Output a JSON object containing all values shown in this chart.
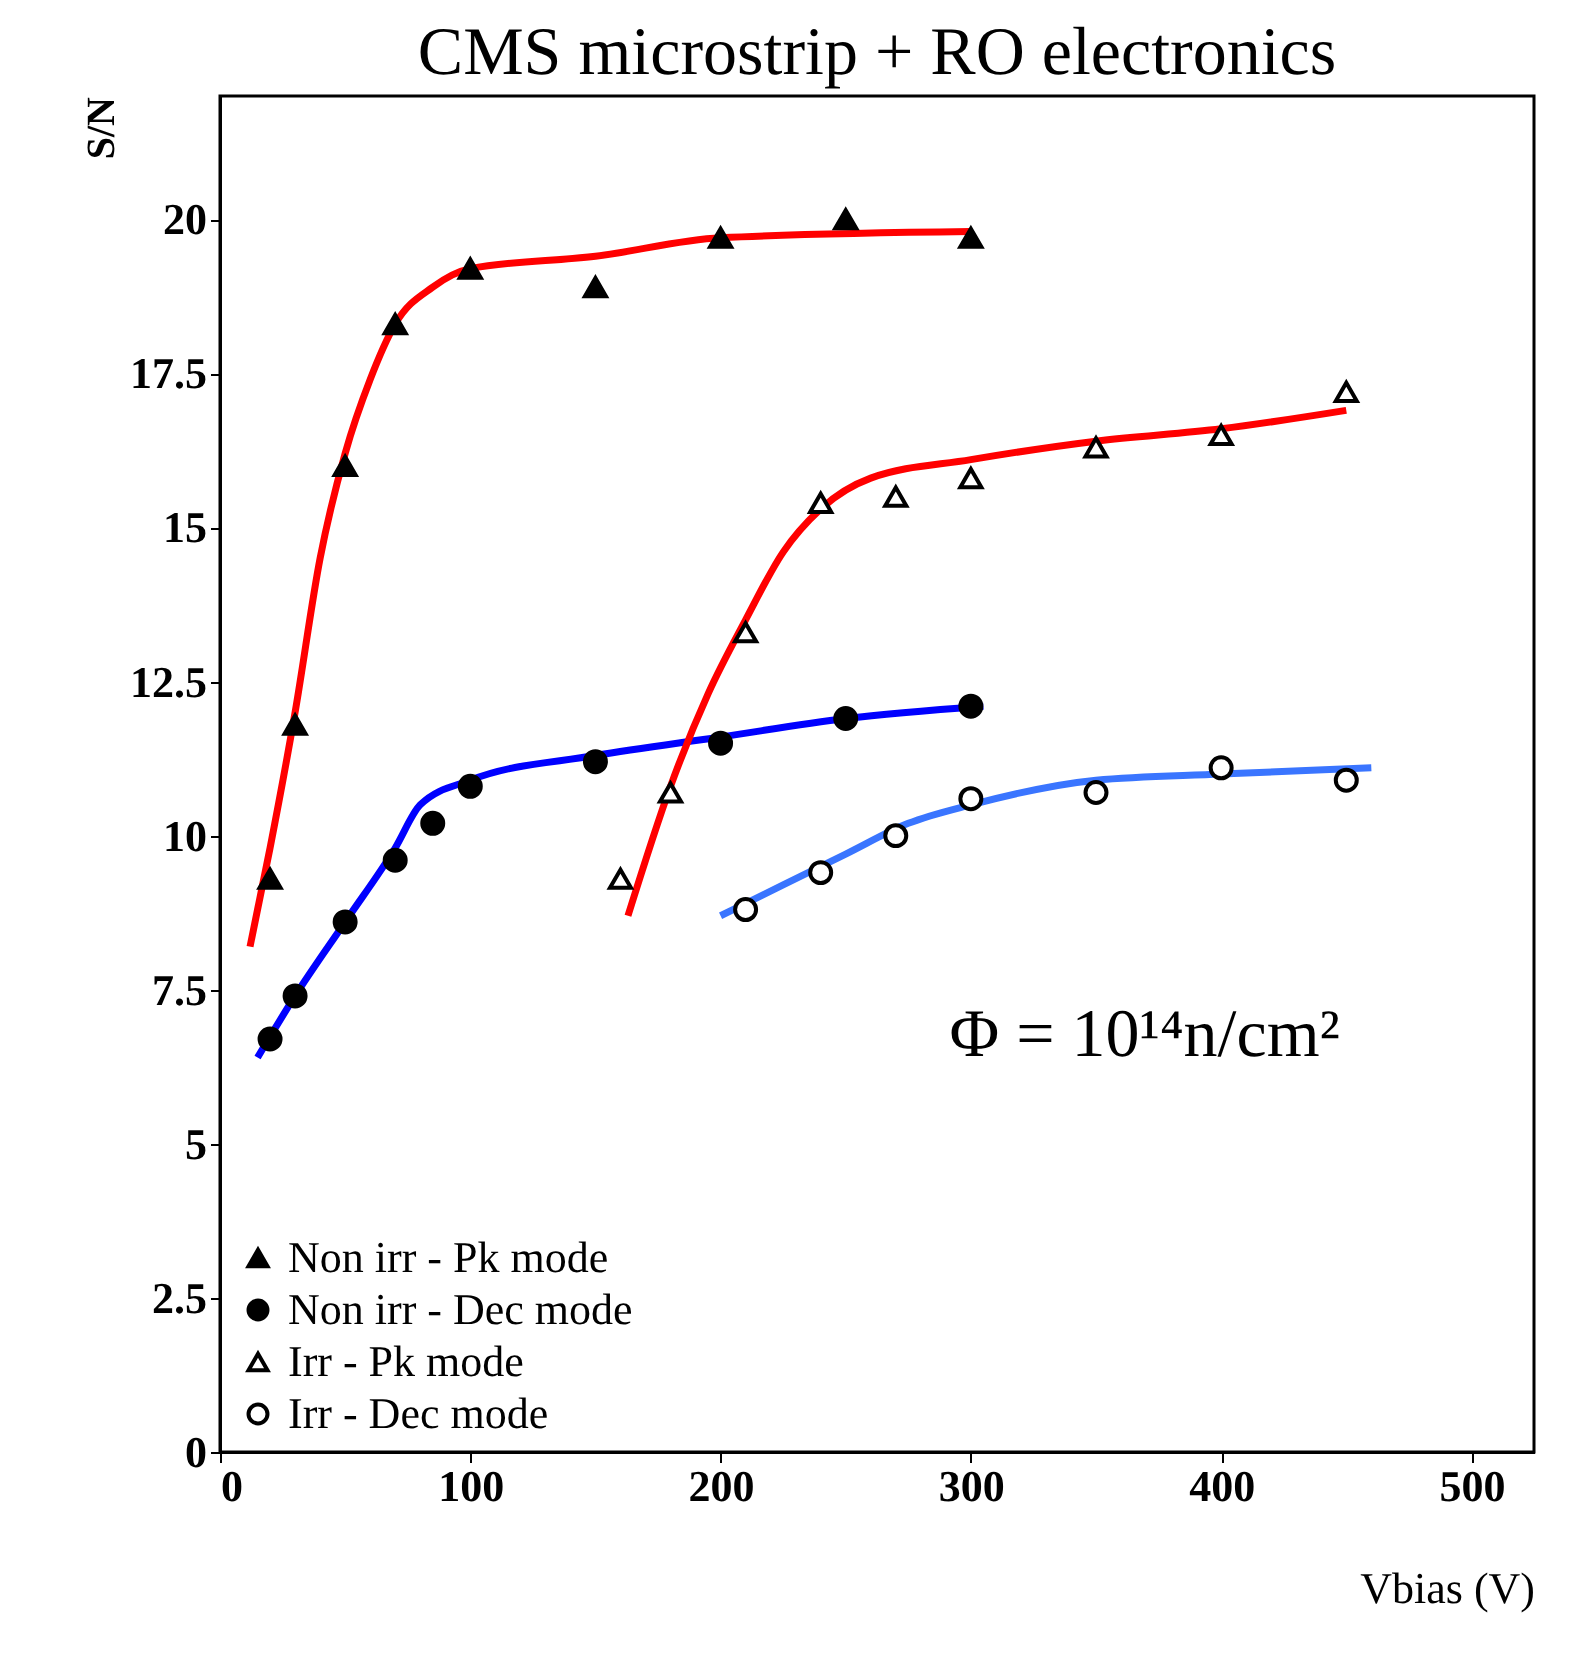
{
  "chart_data": {
    "type": "scatter",
    "title": "CMS microstrip + RO electronics",
    "xlabel": "Vbias (V)",
    "ylabel": "S/N",
    "xlim": [
      0,
      525
    ],
    "xticks": [
      0,
      100,
      200,
      300,
      400,
      500
    ],
    "ylim": [
      0,
      22
    ],
    "yticks": [
      0,
      2.5,
      5,
      7.5,
      10,
      12.5,
      15,
      17.5,
      20
    ],
    "annotations": [
      "Φ = 10¹⁴n/cm²"
    ],
    "legend": "bottom left",
    "grid": false,
    "series": [
      {
        "name": "Non irr - Pk mode",
        "marker": "triangle",
        "color": "#000000",
        "x": [
          20,
          30,
          50,
          70,
          100,
          150,
          200,
          250,
          300
        ],
        "values": [
          9.3,
          11.8,
          16,
          18.3,
          19.2,
          18.9,
          19.7,
          20,
          19.7
        ]
      },
      {
        "name": "Non irr - Dec mode",
        "marker": "circle",
        "color": "#000000",
        "x": [
          20,
          30,
          50,
          70,
          85,
          100,
          150,
          200,
          250,
          300
        ],
        "values": [
          6.7,
          7.4,
          8.6,
          9.6,
          10.2,
          10.8,
          11.2,
          11.5,
          11.9,
          12.1
        ]
      },
      {
        "name": "Irr - Pk mode",
        "marker": "triangle",
        "color": "#ffffff",
        "x": [
          160,
          180,
          210,
          240,
          270,
          300,
          350,
          400,
          450
        ],
        "values": [
          9.3,
          10.7,
          13.3,
          15.4,
          15.5,
          15.8,
          16.3,
          16.5,
          17.2
        ]
      },
      {
        "name": "Irr - Dec mode",
        "marker": "circle",
        "color": "#ffffff",
        "x": [
          210,
          240,
          270,
          300,
          350,
          400,
          450
        ],
        "values": [
          8.8,
          9.4,
          10,
          10.6,
          10.7,
          11.1,
          10.9
        ]
      },
      {
        "type": "line",
        "color": "#ff0000",
        "x": [
          12,
          20,
          30,
          40,
          50,
          60,
          70,
          85,
          100,
          150,
          200,
          300
        ],
        "values": [
          8.2,
          9.8,
          12,
          14.5,
          16.2,
          17.4,
          18.3,
          18.9,
          19.2,
          19.4,
          19.7,
          19.8
        ]
      },
      {
        "type": "line",
        "color": "#0000ff",
        "x": [
          15,
          30,
          50,
          70,
          80,
          100,
          150,
          200,
          250,
          305
        ],
        "values": [
          6.4,
          7.4,
          8.6,
          9.8,
          10.5,
          10.9,
          11.3,
          11.6,
          11.9,
          12.1
        ]
      },
      {
        "type": "line",
        "color": "#ff0000",
        "x": [
          163,
          180,
          195,
          210,
          225,
          240,
          260,
          300,
          350,
          400,
          450
        ],
        "values": [
          8.7,
          10.8,
          12.3,
          13.5,
          14.6,
          15.3,
          15.8,
          16.1,
          16.4,
          16.6,
          16.9
        ]
      },
      {
        "type": "line",
        "color": "#3a75ff",
        "x": [
          200,
          225,
          250,
          275,
          300,
          350,
          400,
          460
        ],
        "values": [
          8.7,
          9.2,
          9.7,
          10.2,
          10.5,
          10.9,
          11.0,
          11.1
        ]
      }
    ]
  }
}
